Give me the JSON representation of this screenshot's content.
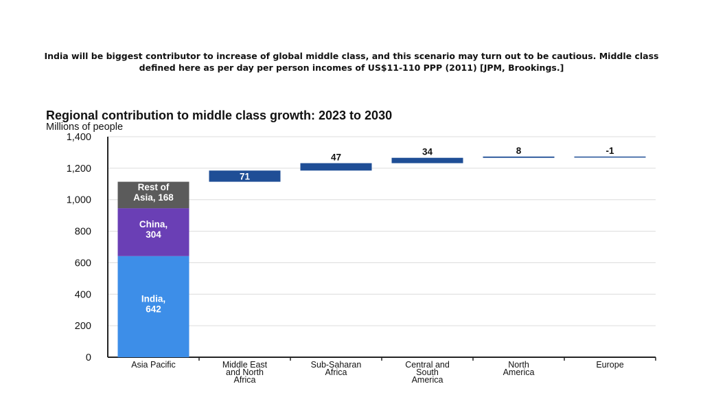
{
  "slide": {
    "caption": "India will be biggest contributor to increase of  global middle class, and this scenario may turn out to be cautious. Middle class defined here as per day per person incomes of US$11-110 PPP (2011) [JPM, Brookings.]"
  },
  "chart_data": {
    "type": "bar",
    "title": "Regional contribution to middle class growth: 2023 to 2030",
    "subtitle": "Millions of people",
    "ylim": [
      0,
      1400
    ],
    "yticks": [
      0,
      200,
      400,
      600,
      800,
      1000,
      1200,
      1400
    ],
    "ytick_labels": [
      "0",
      "200",
      "400",
      "600",
      "800",
      "1,000",
      "1,200",
      "1,400"
    ],
    "grid": true,
    "categories": [
      "Asia Pacific",
      "Middle East and North Africa",
      "Sub-Saharan Africa",
      "Central and South America",
      "North America",
      "Europe"
    ],
    "category_labels": [
      [
        "Asia Pacific"
      ],
      [
        "Middle East",
        "and North",
        "Africa"
      ],
      [
        "Sub-Saharan",
        "Africa"
      ],
      [
        "Central and",
        "South",
        "America"
      ],
      [
        "North",
        "America"
      ],
      [
        "Europe"
      ]
    ],
    "stacked": [
      {
        "category": "Asia Pacific",
        "name": "India",
        "label": [
          "India,",
          "642"
        ],
        "value": 642,
        "color": "#3d8ee8"
      },
      {
        "category": "Asia Pacific",
        "name": "China",
        "label": [
          "China,",
          "304"
        ],
        "value": 304,
        "color": "#6a3fb5"
      },
      {
        "category": "Asia Pacific",
        "name": "Rest of Asia",
        "label": [
          "Rest of",
          "Asia, 168"
        ],
        "value": 168,
        "color": "#5b5b5b"
      }
    ],
    "waterfall": [
      {
        "category": "Middle East and North Africa",
        "value": 71,
        "label": "71"
      },
      {
        "category": "Sub-Saharan Africa",
        "value": 47,
        "label": "47"
      },
      {
        "category": "Central and South America",
        "value": 34,
        "label": "34"
      },
      {
        "category": "North America",
        "value": 8,
        "label": "8"
      },
      {
        "category": "Europe",
        "value": -1,
        "label": "-1"
      }
    ],
    "colors": {
      "waterfall_bar": "#1f4e96",
      "grid": "#dcdcdc",
      "axis": "#222222",
      "label_light": "#ffffff",
      "label_dark": "#111111"
    }
  }
}
